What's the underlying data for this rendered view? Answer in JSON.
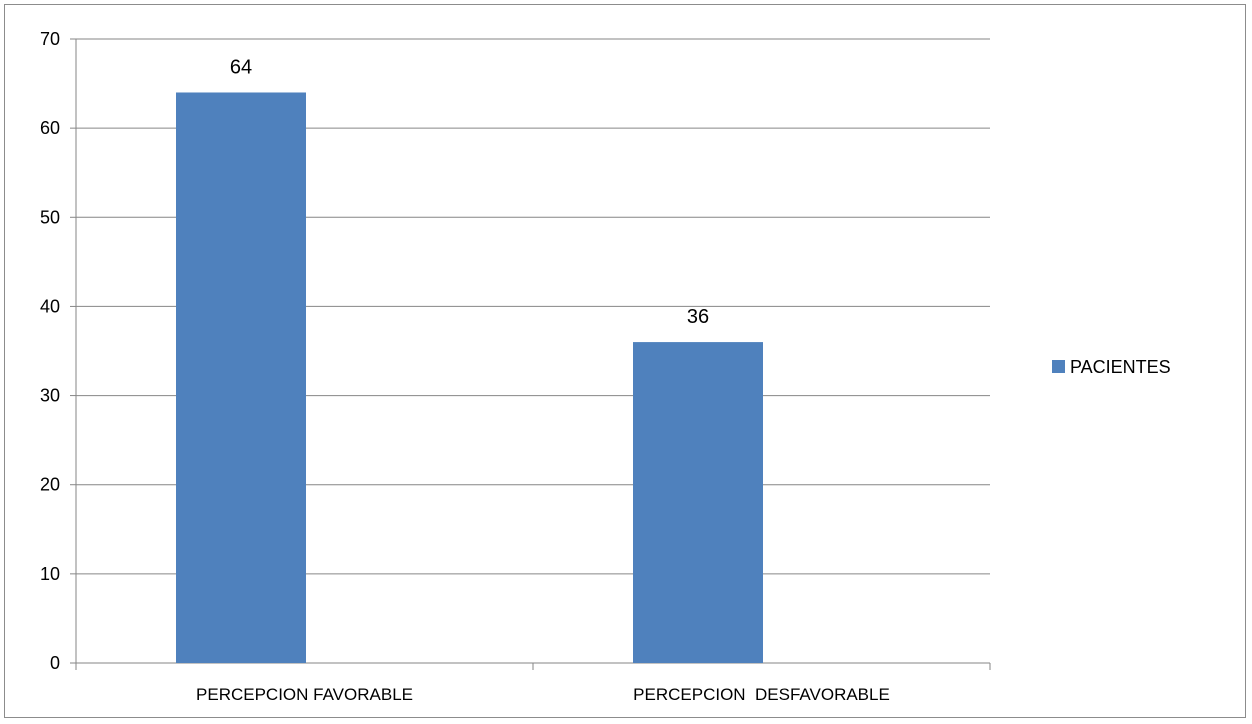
{
  "chart_data": {
    "type": "bar",
    "categories": [
      "PERCEPCION FAVORABLE",
      "PERCEPCION  DESFAVORABLE"
    ],
    "series": [
      {
        "name": "PACIENTES",
        "values": [
          64,
          36
        ],
        "color": "#4f81bd"
      }
    ],
    "ylim": [
      0,
      70
    ],
    "yticks": [
      0,
      10,
      20,
      30,
      40,
      50,
      60,
      70
    ],
    "grid": true,
    "data_labels": true,
    "legend_position": "right",
    "gridline_color": "#868686",
    "axis_color": "#868686"
  }
}
